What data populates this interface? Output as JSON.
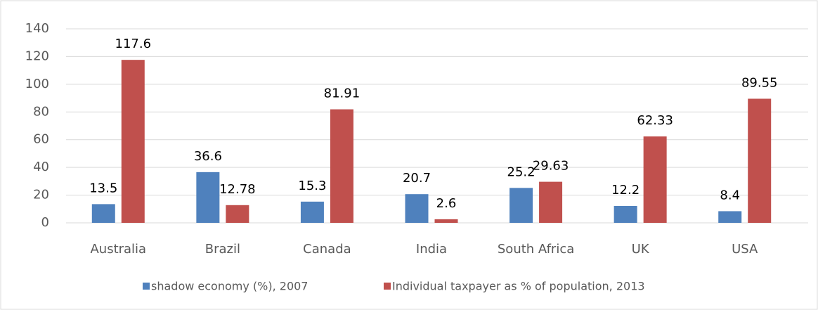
{
  "chart_data": {
    "type": "bar",
    "categories": [
      "Australia",
      "Brazil",
      "Canada",
      "India",
      "South Africa",
      "UK",
      "USA"
    ],
    "series": [
      {
        "name": "shadow economy (%), 2007",
        "color": "#4f81bd",
        "values": [
          13.5,
          36.6,
          15.3,
          20.7,
          25.2,
          12.2,
          8.4
        ]
      },
      {
        "name": "Individual taxpayer as % of population, 2013",
        "color": "#c0504d",
        "values": [
          117.6,
          12.78,
          81.91,
          2.6,
          29.63,
          62.33,
          89.55
        ]
      }
    ],
    "ylim": [
      0,
      140
    ],
    "yticks": [
      0,
      20,
      40,
      60,
      80,
      100,
      120,
      140
    ],
    "grid": true,
    "legend": "bottom"
  }
}
